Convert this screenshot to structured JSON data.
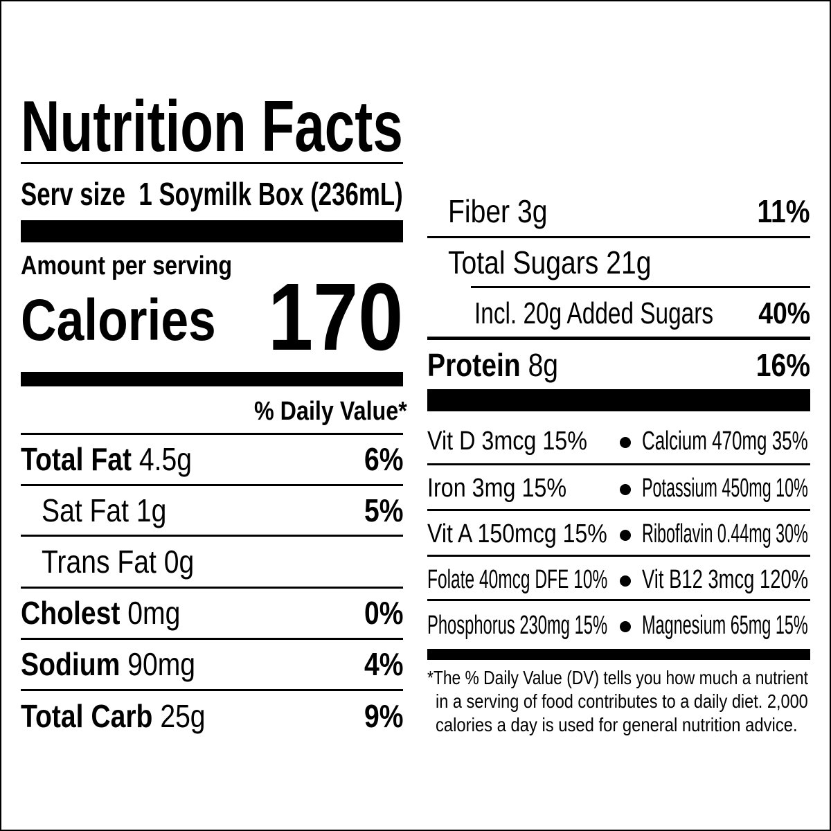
{
  "title": "Nutrition Facts",
  "serving": {
    "label": "Serv size",
    "value": "1 Soymilk Box (236mL)"
  },
  "amount_per_serving": "Amount per serving",
  "calories": {
    "label": "Calories",
    "value": "170"
  },
  "dv_header": "% Daily Value*",
  "left_rows": [
    {
      "name": "Total Fat",
      "amount": "4.5g",
      "dv": "6%"
    },
    {
      "name": "Sat Fat",
      "amount": "1g",
      "dv": "5%"
    },
    {
      "name": "Trans Fat",
      "amount": "0g",
      "dv": ""
    },
    {
      "name": "Cholest",
      "amount": "0mg",
      "dv": "0%"
    },
    {
      "name": "Sodium",
      "amount": "90mg",
      "dv": "4%"
    },
    {
      "name": "Total Carb",
      "amount": "25g",
      "dv": "9%"
    }
  ],
  "right_rows": [
    {
      "name": "Fiber",
      "amount": "3g",
      "dv": "11%"
    },
    {
      "name": "Total Sugars",
      "amount": "21g",
      "dv": ""
    },
    {
      "name": "Incl. 20g Added Sugars",
      "amount": "",
      "dv": "40%"
    },
    {
      "name": "Protein",
      "amount": "8g",
      "dv": "16%"
    }
  ],
  "vitamins": [
    [
      "Vit D 3mcg 15%",
      "Calcium 470mg 35%"
    ],
    [
      "Iron 3mg 15%",
      "Potassium 450mg 10%"
    ],
    [
      "Vit A 150mcg 15%",
      "Riboflavin 0.44mg 30%"
    ],
    [
      "Folate 40mcg DFE 10%",
      "Vit B12 3mcg 120%"
    ],
    [
      "Phosphorus 230mg 15%",
      "Magnesium 65mg 15%"
    ]
  ],
  "footnote": [
    "*The % Daily Value (DV) tells you how much a nutrient",
    "in a serving of food contributes to a daily diet. 2,000",
    "calories a day is used for general nutrition advice."
  ]
}
